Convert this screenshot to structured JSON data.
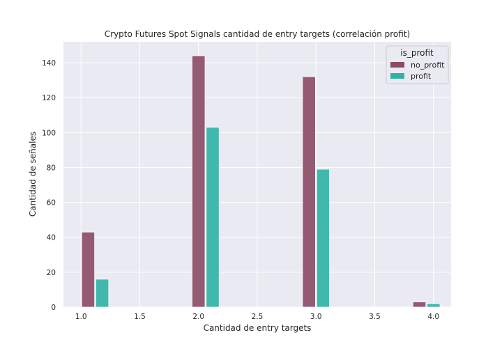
{
  "chart_data": {
    "type": "bar",
    "title": "Crypto Futures Spot Signals cantidad de entry targets (correlación profit)",
    "xlabel": "Cantidad de entry targets",
    "ylabel": "Cantidad de señales",
    "xlim": [
      0.85,
      4.15
    ],
    "ylim": [
      0,
      152
    ],
    "xticks": [
      1.0,
      1.5,
      2.0,
      2.5,
      3.0,
      3.5,
      4.0
    ],
    "xtick_labels": [
      "1.0",
      "1.5",
      "2.0",
      "2.5",
      "3.0",
      "3.5",
      "4.0"
    ],
    "yticks": [
      0,
      20,
      40,
      60,
      80,
      100,
      120,
      140
    ],
    "ytick_labels": [
      "0",
      "20",
      "40",
      "60",
      "80",
      "100",
      "120",
      "140"
    ],
    "grid": true,
    "legend": {
      "title": "is_profit",
      "placement": "top-right"
    },
    "bar_width": 0.11,
    "series": [
      {
        "name": "no_profit",
        "color": "#8b4a66",
        "x": [
          1.06,
          2.0,
          2.94,
          3.88
        ],
        "values": [
          43,
          144,
          132,
          3
        ]
      },
      {
        "name": "profit",
        "color": "#2fb3a6",
        "x": [
          1.18,
          2.12,
          3.06,
          4.0
        ],
        "values": [
          16,
          103,
          79,
          2
        ]
      }
    ]
  }
}
